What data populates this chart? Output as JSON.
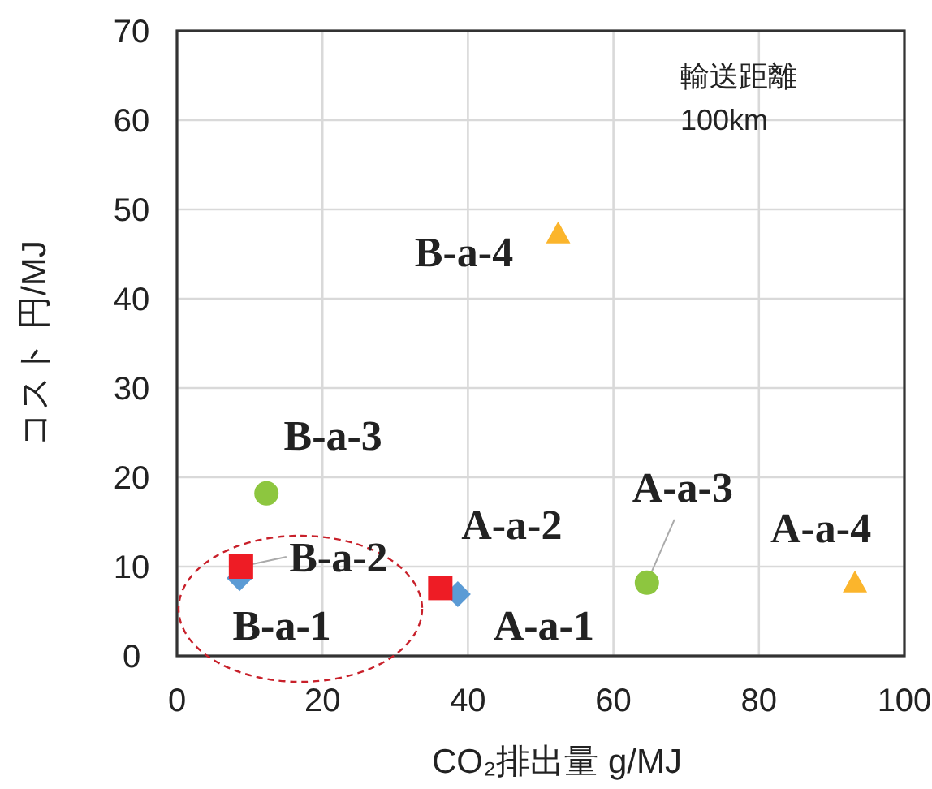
{
  "chart_data": {
    "type": "scatter",
    "xlabel": "CO₂排出量  g/MJ",
    "ylabel": "コスト  円/MJ",
    "xlim": [
      0,
      100
    ],
    "xticks": [
      0,
      20,
      40,
      60,
      80,
      100
    ],
    "ylim": [
      0,
      70
    ],
    "yticks": [
      0,
      10,
      20,
      30,
      40,
      50,
      60,
      70
    ],
    "grid": true,
    "series": [
      {
        "color": "#5b9bd5",
        "marker": "diamond",
        "x": [
          38.6,
          8.6
        ],
        "values": [
          6.9,
          8.7
        ]
      },
      {
        "color": "#ee1c25",
        "marker": "square",
        "x": [
          36.2,
          8.8
        ],
        "values": [
          7.6,
          10.0
        ]
      },
      {
        "color": "#8dc63f",
        "marker": "circle",
        "x": [
          64.6,
          12.3
        ],
        "values": [
          8.2,
          18.2
        ]
      },
      {
        "color": "#fbb52c",
        "marker": "triangle",
        "x": [
          93.2,
          52.4
        ],
        "values": [
          8.2,
          47.3
        ]
      }
    ],
    "annotations": [
      {
        "text": "A-a-1",
        "x": 38.6,
        "y": 6.9
      },
      {
        "text": "A-a-2",
        "x": 36.2,
        "y": 7.6
      },
      {
        "text": "A-a-3",
        "x": 64.6,
        "y": 8.2
      },
      {
        "text": "A-a-4",
        "x": 93.2,
        "y": 8.2
      },
      {
        "text": "B-a-1",
        "x": 8.6,
        "y": 8.7
      },
      {
        "text": "B-a-2",
        "x": 8.8,
        "y": 10.0
      },
      {
        "text": "B-a-3",
        "x": 12.3,
        "y": 18.2
      },
      {
        "text": "B-a-4",
        "x": 52.4,
        "y": 47.3
      },
      "輸送距離",
      "100km"
    ]
  }
}
